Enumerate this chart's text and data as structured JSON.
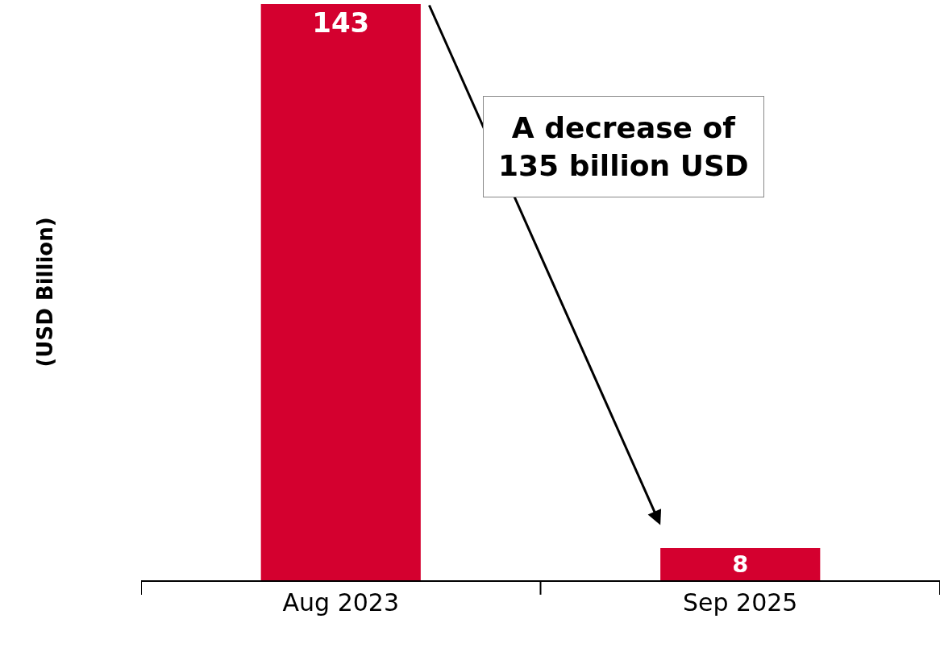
{
  "chart_data": {
    "type": "bar",
    "ylabel": "(USD Billion)",
    "categories": [
      "Aug 2023",
      "Sep 2025"
    ],
    "values": [
      143,
      8
    ],
    "color": "#d4002f",
    "data_labels": true,
    "annotations": [
      "A decrease of\n135 billion USD"
    ]
  }
}
